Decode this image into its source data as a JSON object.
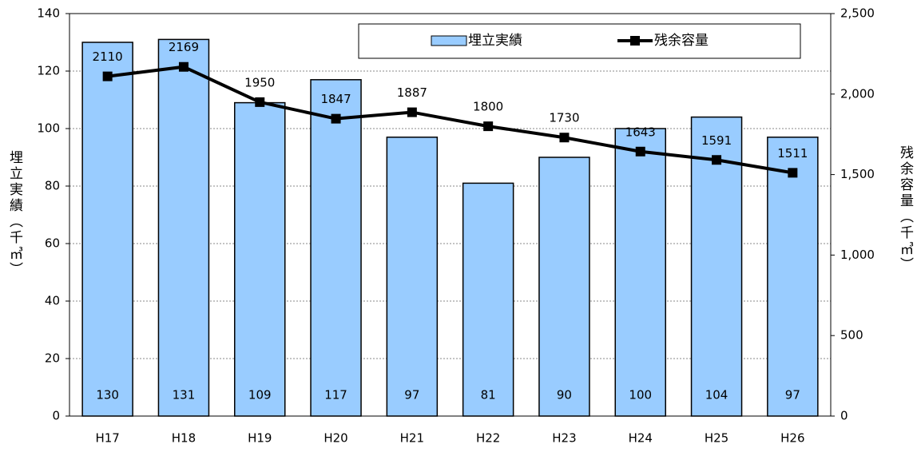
{
  "chart_data": {
    "type": "bar",
    "categories": [
      "H17",
      "H18",
      "H19",
      "H20",
      "H21",
      "H22",
      "H23",
      "H24",
      "H25",
      "H26"
    ],
    "series": [
      {
        "name": "埋立実績",
        "color": "#99ccff",
        "type": "bar",
        "axis": "y",
        "values": [
          130,
          131,
          109,
          117,
          97,
          81,
          90,
          100,
          104,
          97
        ]
      },
      {
        "name": "残余容量",
        "color": "#000000",
        "type": "line",
        "axis": "y2",
        "values": [
          2110,
          2169,
          1950,
          1847,
          1887,
          1800,
          1730,
          1643,
          1591,
          1511
        ]
      }
    ],
    "ylabel": "埋立実績（千㎥）",
    "y2label": "残余容量（千㎥）",
    "ylim": [
      0,
      140
    ],
    "yticks": [
      0,
      20,
      40,
      60,
      80,
      100,
      120,
      140
    ],
    "y2lim": [
      0,
      2500
    ],
    "y2ticks": [
      0,
      500,
      {
        "value": 1000,
        "label": "1,000"
      },
      {
        "value": 1500,
        "label": "1,500"
      },
      {
        "value": 2000,
        "label": "2,000"
      },
      {
        "value": 2500,
        "label": "2,500"
      }
    ],
    "grid": true,
    "legend": "top"
  }
}
